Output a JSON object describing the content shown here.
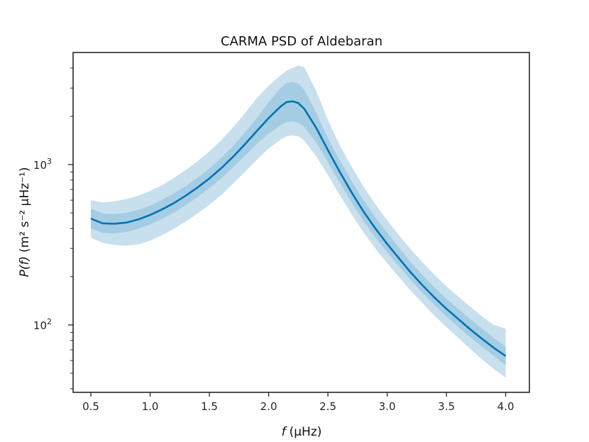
{
  "chart_data": {
    "type": "line",
    "title": "CARMA PSD of Aldebaran",
    "xlabel": {
      "var": "f",
      "unit": "(μHz)"
    },
    "ylabel": {
      "var": "P(f)",
      "unit": "(m² s⁻² μHz⁻¹)"
    },
    "yscale": "log",
    "xlim": [
      0.35,
      4.2
    ],
    "ylim": [
      38,
      5000
    ],
    "grid": false,
    "x_ticks": [
      0.5,
      1.0,
      1.5,
      2.0,
      2.5,
      3.0,
      3.5,
      4.0
    ],
    "x_tick_labels": [
      "0.5",
      "1.0",
      "1.5",
      "2.0",
      "2.5",
      "3.0",
      "3.5",
      "4.0"
    ],
    "y_major_ticks": [
      {
        "value": 100,
        "base": "10",
        "exp": "2"
      },
      {
        "value": 1000,
        "base": "10",
        "exp": "3"
      }
    ],
    "y_minor_ticks": [
      40,
      50,
      60,
      70,
      80,
      90,
      200,
      300,
      400,
      500,
      600,
      700,
      800,
      900,
      2000,
      3000,
      4000
    ],
    "colors": {
      "line": "#0072b2",
      "band_inner": "#9ecae1",
      "band_outer": "#c2dcec",
      "axis": "#262626"
    },
    "series": [
      {
        "name": "median",
        "x": [
          0.5,
          0.6,
          0.7,
          0.8,
          0.9,
          1.0,
          1.1,
          1.2,
          1.3,
          1.4,
          1.5,
          1.6,
          1.7,
          1.8,
          1.9,
          2.0,
          2.1,
          2.15,
          2.2,
          2.25,
          2.3,
          2.4,
          2.5,
          2.6,
          2.7,
          2.8,
          2.9,
          3.0,
          3.1,
          3.2,
          3.3,
          3.4,
          3.5,
          3.6,
          3.7,
          3.8,
          3.9,
          4.0
        ],
        "y": [
          460,
          430,
          428,
          435,
          455,
          485,
          525,
          575,
          640,
          720,
          820,
          950,
          1120,
          1340,
          1620,
          1950,
          2300,
          2450,
          2480,
          2420,
          2230,
          1700,
          1230,
          900,
          670,
          510,
          400,
          320,
          260,
          212,
          176,
          148,
          126,
          109,
          94,
          82,
          72,
          64
        ]
      },
      {
        "name": "inner band",
        "x": [
          0.5,
          0.6,
          0.7,
          0.8,
          0.9,
          1.0,
          1.1,
          1.2,
          1.3,
          1.4,
          1.5,
          1.6,
          1.7,
          1.8,
          1.9,
          2.0,
          2.1,
          2.15,
          2.2,
          2.25,
          2.3,
          2.4,
          2.5,
          2.6,
          2.7,
          2.8,
          2.9,
          3.0,
          3.1,
          3.2,
          3.3,
          3.4,
          3.5,
          3.6,
          3.7,
          3.8,
          3.9,
          4.0
        ],
        "lower": [
          400,
          375,
          372,
          380,
          398,
          424,
          458,
          502,
          558,
          628,
          712,
          820,
          960,
          1135,
          1345,
          1560,
          1760,
          1840,
          1860,
          1830,
          1720,
          1380,
          1040,
          770,
          580,
          445,
          352,
          284,
          232,
          190,
          158,
          133,
          113,
          97,
          84,
          73,
          64,
          56
        ],
        "upper": [
          530,
          495,
          492,
          500,
          522,
          556,
          602,
          660,
          735,
          828,
          945,
          1100,
          1310,
          1590,
          1950,
          2450,
          3000,
          3220,
          3270,
          3200,
          2930,
          2120,
          1460,
          1060,
          790,
          600,
          470,
          375,
          302,
          246,
          204,
          171,
          146,
          126,
          109,
          95,
          83,
          73
        ]
      },
      {
        "name": "outer band",
        "x": [
          0.5,
          0.6,
          0.7,
          0.8,
          0.9,
          1.0,
          1.1,
          1.2,
          1.3,
          1.4,
          1.5,
          1.6,
          1.7,
          1.8,
          1.9,
          2.0,
          2.1,
          2.15,
          2.2,
          2.25,
          2.3,
          2.4,
          2.5,
          2.6,
          2.7,
          2.8,
          2.9,
          3.0,
          3.1,
          3.2,
          3.3,
          3.4,
          3.5,
          3.6,
          3.7,
          3.8,
          3.9,
          4.0
        ],
        "lower": [
          350,
          325,
          315,
          312,
          318,
          335,
          362,
          398,
          442,
          496,
          562,
          646,
          760,
          900,
          1070,
          1260,
          1430,
          1500,
          1520,
          1500,
          1410,
          1130,
          860,
          645,
          490,
          378,
          300,
          243,
          199,
          163,
          136,
          114,
          97,
          83,
          71,
          61,
          53,
          47
        ],
        "upper": [
          600,
          580,
          590,
          610,
          640,
          685,
          745,
          825,
          925,
          1050,
          1210,
          1420,
          1710,
          2090,
          2600,
          3100,
          3600,
          3850,
          4000,
          4150,
          4050,
          2900,
          1900,
          1320,
          970,
          730,
          565,
          450,
          362,
          295,
          245,
          205,
          174,
          150,
          130,
          113,
          100,
          95
        ]
      }
    ]
  }
}
